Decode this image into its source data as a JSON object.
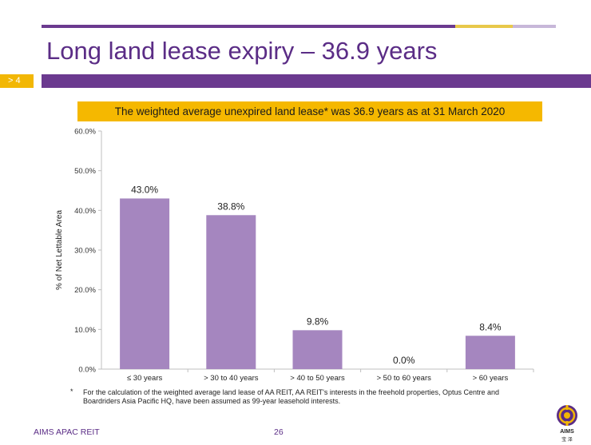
{
  "slide": {
    "title": "Long land lease expiry – 36.9 years",
    "section": "> 4",
    "banner": "The weighted average unexpired land lease* was 36.9 years as at 31 March 2020",
    "footnote_marker": "*",
    "footnote": "For the calculation of the weighted average land lease of AA REIT, AA REIT's interests in the freehold properties, Optus Centre and Boardriders Asia Pacific HQ, have been assumed as 99-year leasehold interests.",
    "footer_left": "AIMS APAC REIT",
    "page_number": "26",
    "logo_text": "AIMS",
    "logo_subtext": "宝 泽"
  },
  "colors": {
    "purple": "#6b3a8f",
    "gold": "#f5b800",
    "bar": "#a586bf"
  },
  "chart_data": {
    "type": "bar",
    "categories": [
      "≤ 30 years",
      "> 30 to 40 years",
      "> 40 to 50 years",
      "> 50 to 60 years",
      "> 60 years"
    ],
    "values": [
      43.0,
      38.8,
      9.8,
      0.0,
      8.4
    ],
    "data_labels": [
      "43.0%",
      "38.8%",
      "9.8%",
      "0.0%",
      "8.4%"
    ],
    "ylabel": "% of Net Lettable Area",
    "xlabel": "",
    "ylim": [
      0,
      60
    ],
    "yticks": [
      0,
      10,
      20,
      30,
      40,
      50,
      60
    ],
    "ytick_labels": [
      "0.0%",
      "10.0%",
      "20.0%",
      "30.0%",
      "40.0%",
      "50.0%",
      "60.0%"
    ],
    "grid": false,
    "legend": "none"
  }
}
